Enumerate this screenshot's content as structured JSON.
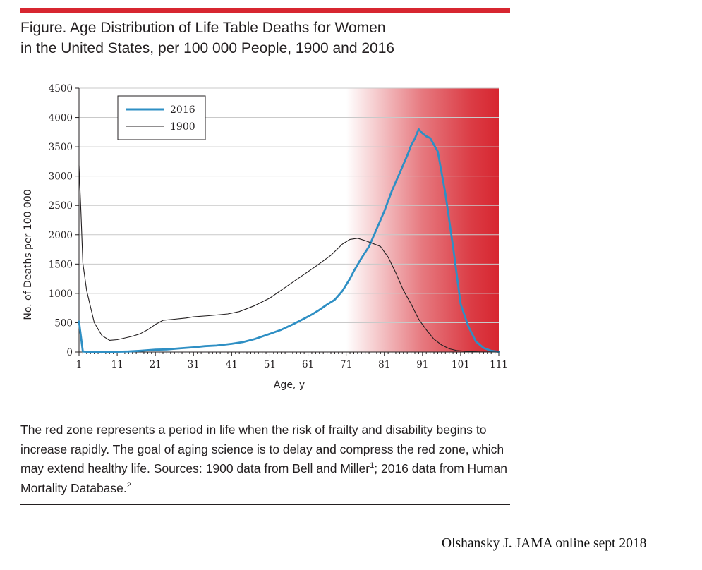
{
  "figure": {
    "title_line1": "Figure. Age Distribution of Life Table Deaths for Women",
    "title_line2": "in the United States, per 100 000 People, 1900 and 2016",
    "caption_part1": "The red zone represents a period in life when the risk of frailty and disability begins to increase rapidly. The goal of aging science is to delay and compress the red zone, which may extend healthy life. Sources: 1900 data from Bell and Miller",
    "caption_ref1": "1",
    "caption_part2": "; 2016 data from Human Mortality Database.",
    "caption_ref2": "2"
  },
  "credit": "Olshansky J. JAMA online sept 2018",
  "colors": {
    "accent_red": "#d72630",
    "series_2016": "#2e8fc4",
    "series_1900": "#231f20",
    "red_zone": "#d72630"
  },
  "chart_data": {
    "type": "line",
    "title": "Age Distribution of Life Table Deaths for Women in the United States, per 100 000 People, 1900 and 2016",
    "xlabel": "Age, y",
    "ylabel": "No. of Deaths per 100 000",
    "xlim": [
      1,
      111
    ],
    "ylim": [
      0,
      4500
    ],
    "xticks": [
      1,
      11,
      21,
      31,
      41,
      51,
      61,
      71,
      81,
      91,
      101,
      111
    ],
    "xtick_labels": [
      "1",
      "11",
      "21",
      "31",
      "41",
      "51",
      "61",
      "71",
      "81",
      "91",
      "101",
      "111"
    ],
    "yticks": [
      0,
      500,
      1000,
      1500,
      2000,
      2500,
      3000,
      3500,
      4000,
      4500
    ],
    "ytick_labels": [
      "0",
      "500",
      "1000",
      "1500",
      "2000",
      "2500",
      "3000",
      "3500",
      "4000",
      "4500"
    ],
    "grid": "horizontal",
    "legend_position": "top-left",
    "red_zone": {
      "start_age": 71,
      "end_age": 111,
      "label": "red zone"
    },
    "series": [
      {
        "name": "2016",
        "color": "#2e8fc4",
        "x": [
          1,
          2,
          3,
          5,
          8,
          11,
          14,
          17,
          21,
          24,
          27,
          31,
          34,
          37,
          41,
          44,
          47,
          51,
          54,
          57,
          60,
          62,
          64,
          66,
          68,
          70,
          72,
          73,
          75,
          77,
          79,
          81,
          83,
          85,
          87,
          88,
          89,
          90,
          91,
          92,
          93,
          95,
          97,
          99,
          101,
          103,
          105,
          107,
          109,
          111
        ],
        "y": [
          520,
          10,
          5,
          5,
          5,
          5,
          10,
          20,
          40,
          45,
          60,
          80,
          100,
          110,
          140,
          170,
          220,
          310,
          380,
          470,
          570,
          640,
          720,
          810,
          890,
          1040,
          1250,
          1380,
          1600,
          1800,
          2100,
          2400,
          2750,
          3050,
          3350,
          3520,
          3640,
          3800,
          3730,
          3680,
          3650,
          3420,
          2700,
          1800,
          820,
          440,
          180,
          70,
          20,
          5
        ]
      },
      {
        "name": "1900",
        "color": "#231f20",
        "x": [
          1,
          1.5,
          2,
          3,
          5,
          7,
          9,
          11,
          13,
          15,
          17,
          19,
          21,
          23,
          26,
          29,
          31,
          35,
          40,
          43,
          47,
          51,
          55,
          59,
          63,
          67,
          70,
          72,
          74,
          76,
          78,
          80,
          82,
          84,
          86,
          88,
          90,
          92,
          94,
          96,
          98,
          100,
          103,
          106,
          111
        ],
        "y": [
          3180,
          2400,
          1520,
          1050,
          500,
          280,
          200,
          210,
          240,
          270,
          310,
          380,
          470,
          540,
          560,
          580,
          600,
          620,
          650,
          690,
          790,
          920,
          1100,
          1280,
          1460,
          1650,
          1840,
          1920,
          1940,
          1900,
          1850,
          1800,
          1620,
          1350,
          1050,
          820,
          560,
          380,
          220,
          120,
          55,
          25,
          10,
          3,
          0
        ]
      }
    ]
  }
}
